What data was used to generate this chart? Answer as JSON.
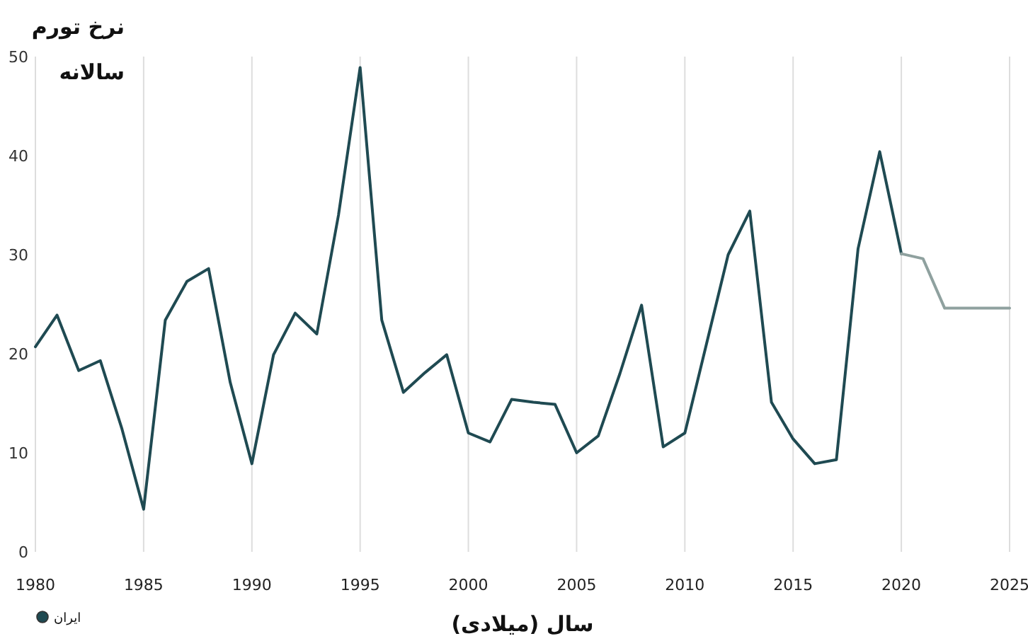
{
  "chart_data": {
    "type": "line",
    "ylabel": "نرخ تورم\nسالانه",
    "xlabel": "سال (میلادی)",
    "xlim": [
      1980,
      2025
    ],
    "xticks": [
      1980,
      1985,
      1990,
      1995,
      2000,
      2005,
      2010,
      2015,
      2020,
      2025
    ],
    "ylim": [
      0,
      50
    ],
    "yticks": [
      0,
      10,
      20,
      30,
      40,
      50
    ],
    "grid": "x",
    "legend": "bottom left",
    "marker": "none",
    "line_style": "solid",
    "series": [
      {
        "name": "ایران",
        "color": "#1f4a52",
        "x": [
          1980,
          1981,
          1982,
          1983,
          1984,
          1985,
          1986,
          1987,
          1988,
          1989,
          1990,
          1991,
          1992,
          1993,
          1994,
          1995,
          1996,
          1997,
          1998,
          1999,
          2000,
          2001,
          2002,
          2003,
          2004,
          2005,
          2006,
          2007,
          2008,
          2009,
          2010,
          2011,
          2012,
          2013,
          2014,
          2015,
          2016,
          2017,
          2018,
          2019,
          2020
        ],
        "values": [
          20.7,
          23.9,
          18.3,
          19.3,
          12.4,
          4.3,
          23.4,
          27.3,
          28.6,
          17.1,
          8.9,
          19.9,
          24.1,
          22.0,
          34.0,
          48.9,
          23.4,
          16.1,
          18.1,
          19.9,
          12.0,
          11.1,
          15.4,
          15.1,
          14.9,
          10.0,
          11.7,
          18.0,
          24.9,
          10.6,
          12.0,
          21.0,
          30.0,
          34.4,
          15.1,
          11.4,
          8.9,
          9.3,
          30.6,
          40.4,
          30.1
        ]
      },
      {
        "color": "#8fa19f",
        "x": [
          2020,
          2021,
          2022,
          2023,
          2024,
          2025
        ],
        "values": [
          30.1,
          29.6,
          24.6,
          24.6,
          24.6,
          24.6
        ]
      }
    ]
  }
}
